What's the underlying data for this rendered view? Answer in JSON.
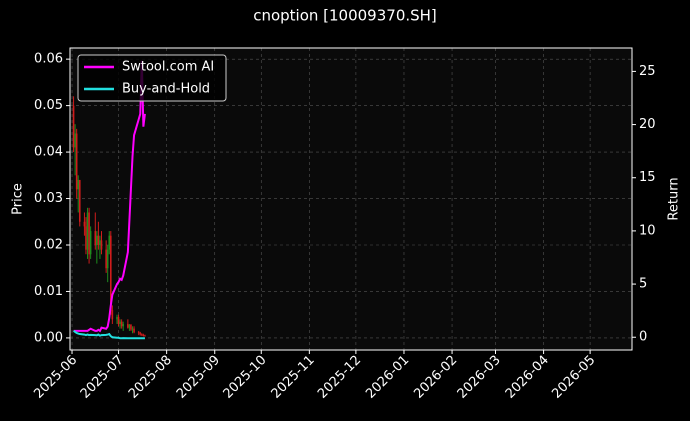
{
  "chart_data": {
    "type": "candlestick",
    "title": "cnoption [10009370.SH]",
    "ylabel": "Price",
    "y2label": "Return",
    "x": [
      1,
      2,
      3,
      4,
      5,
      8,
      9,
      10,
      11,
      12,
      15,
      16,
      17,
      18,
      19,
      22,
      23,
      24,
      25,
      26,
      29,
      30,
      31,
      32,
      33,
      36,
      37,
      38,
      39,
      40,
      43,
      44,
      45,
      46,
      47
    ],
    "open": [
      0.05,
      0.041,
      0.044,
      0.032,
      0.034,
      0.025,
      0.024,
      0.019,
      0.027,
      0.018,
      0.023,
      0.02,
      0.022,
      0.02,
      0.021,
      0.019,
      0.015,
      0.019,
      0.022,
      0.006,
      0.004,
      0.0045,
      0.003,
      0.0035,
      0.0025,
      0.003,
      0.0022,
      0.0028,
      0.0018,
      0.002,
      0.0012,
      0.001,
      0.0008,
      0.0006,
      0.0005
    ],
    "high": [
      0.052,
      0.046,
      0.045,
      0.035,
      0.034,
      0.027,
      0.026,
      0.028,
      0.028,
      0.024,
      0.027,
      0.023,
      0.025,
      0.022,
      0.023,
      0.021,
      0.02,
      0.023,
      0.023,
      0.007,
      0.005,
      0.005,
      0.004,
      0.004,
      0.0035,
      0.004,
      0.003,
      0.003,
      0.0025,
      0.0025,
      0.0015,
      0.0013,
      0.001,
      0.0009,
      0.0007
    ],
    "low": [
      0.04,
      0.035,
      0.03,
      0.027,
      0.024,
      0.022,
      0.018,
      0.017,
      0.016,
      0.017,
      0.019,
      0.016,
      0.019,
      0.017,
      0.018,
      0.014,
      0.012,
      0.018,
      0.005,
      0.003,
      0.003,
      0.0025,
      0.002,
      0.002,
      0.0015,
      0.002,
      0.0015,
      0.0015,
      0.001,
      0.001,
      0.0006,
      0.0005,
      0.0004,
      0.0003,
      0.0003
    ],
    "close": [
      0.041,
      0.044,
      0.032,
      0.034,
      0.025,
      0.024,
      0.019,
      0.027,
      0.018,
      0.023,
      0.02,
      0.022,
      0.02,
      0.021,
      0.019,
      0.015,
      0.019,
      0.022,
      0.006,
      0.004,
      0.0045,
      0.003,
      0.0035,
      0.0025,
      0.003,
      0.0022,
      0.0028,
      0.0018,
      0.002,
      0.0012,
      0.001,
      0.0008,
      0.0006,
      0.0005,
      0.0004
    ],
    "up_color": "#1e8c1e",
    "down_color": "#d01c1c",
    "series": [
      {
        "name": "Swtool.com AI",
        "color": "#ff00ff",
        "axis": "y2",
        "values": [
          0.6,
          0.6,
          0.6,
          0.6,
          0.6,
          0.6,
          0.6,
          0.6,
          0.7,
          0.8,
          0.6,
          0.6,
          0.7,
          0.6,
          0.9,
          0.8,
          1.0,
          1.8,
          3.0,
          4.0,
          5.0,
          5.2,
          5.5,
          5.4,
          5.8,
          8,
          11,
          14,
          17,
          19,
          20.5,
          21,
          26,
          19.8,
          21
        ]
      },
      {
        "name": "Buy-and-Hold",
        "color": "#22e0e0",
        "axis": "y2",
        "values": [
          0.6,
          0.5,
          0.4,
          0.35,
          0.3,
          0.25,
          0.2,
          0.25,
          0.2,
          0.22,
          0.2,
          0.18,
          0.25,
          0.15,
          0.2,
          0.22,
          0.25,
          0.3,
          0.1,
          0.0,
          -0.05,
          -0.05,
          -0.1,
          -0.1,
          -0.08,
          -0.1,
          -0.1,
          -0.1,
          -0.1,
          -0.1,
          -0.1,
          -0.1,
          -0.1,
          -0.1,
          -0.1
        ]
      }
    ],
    "xlim": [
      -1.3,
      361
    ],
    "xticks": [
      {
        "value": 0,
        "label": "2025-06"
      },
      {
        "value": 30,
        "label": "2025-07"
      },
      {
        "value": 61,
        "label": "2025-08"
      },
      {
        "value": 92,
        "label": "2025-09"
      },
      {
        "value": 122,
        "label": "2025-10"
      },
      {
        "value": 153,
        "label": "2025-11"
      },
      {
        "value": 183,
        "label": "2025-12"
      },
      {
        "value": 214,
        "label": "2026-01"
      },
      {
        "value": 245,
        "label": "2026-02"
      },
      {
        "value": 273,
        "label": "2026-03"
      },
      {
        "value": 304,
        "label": "2026-04"
      },
      {
        "value": 334,
        "label": "2026-05"
      }
    ],
    "ylim": [
      -0.0026,
      0.0624
    ],
    "yticks": [
      {
        "value": 0,
        "label": "0.00"
      },
      {
        "value": 0.01,
        "label": "0.01"
      },
      {
        "value": 0.02,
        "label": "0.02"
      },
      {
        "value": 0.03,
        "label": "0.03"
      },
      {
        "value": 0.04,
        "label": "0.04"
      },
      {
        "value": 0.05,
        "label": "0.05"
      },
      {
        "value": 0.06,
        "label": "0.06"
      }
    ],
    "y2lim": [
      -1.2,
      27.2
    ],
    "y2ticks": [
      0,
      5,
      10,
      15,
      20,
      25
    ],
    "grid": true,
    "legend": "upper left"
  }
}
